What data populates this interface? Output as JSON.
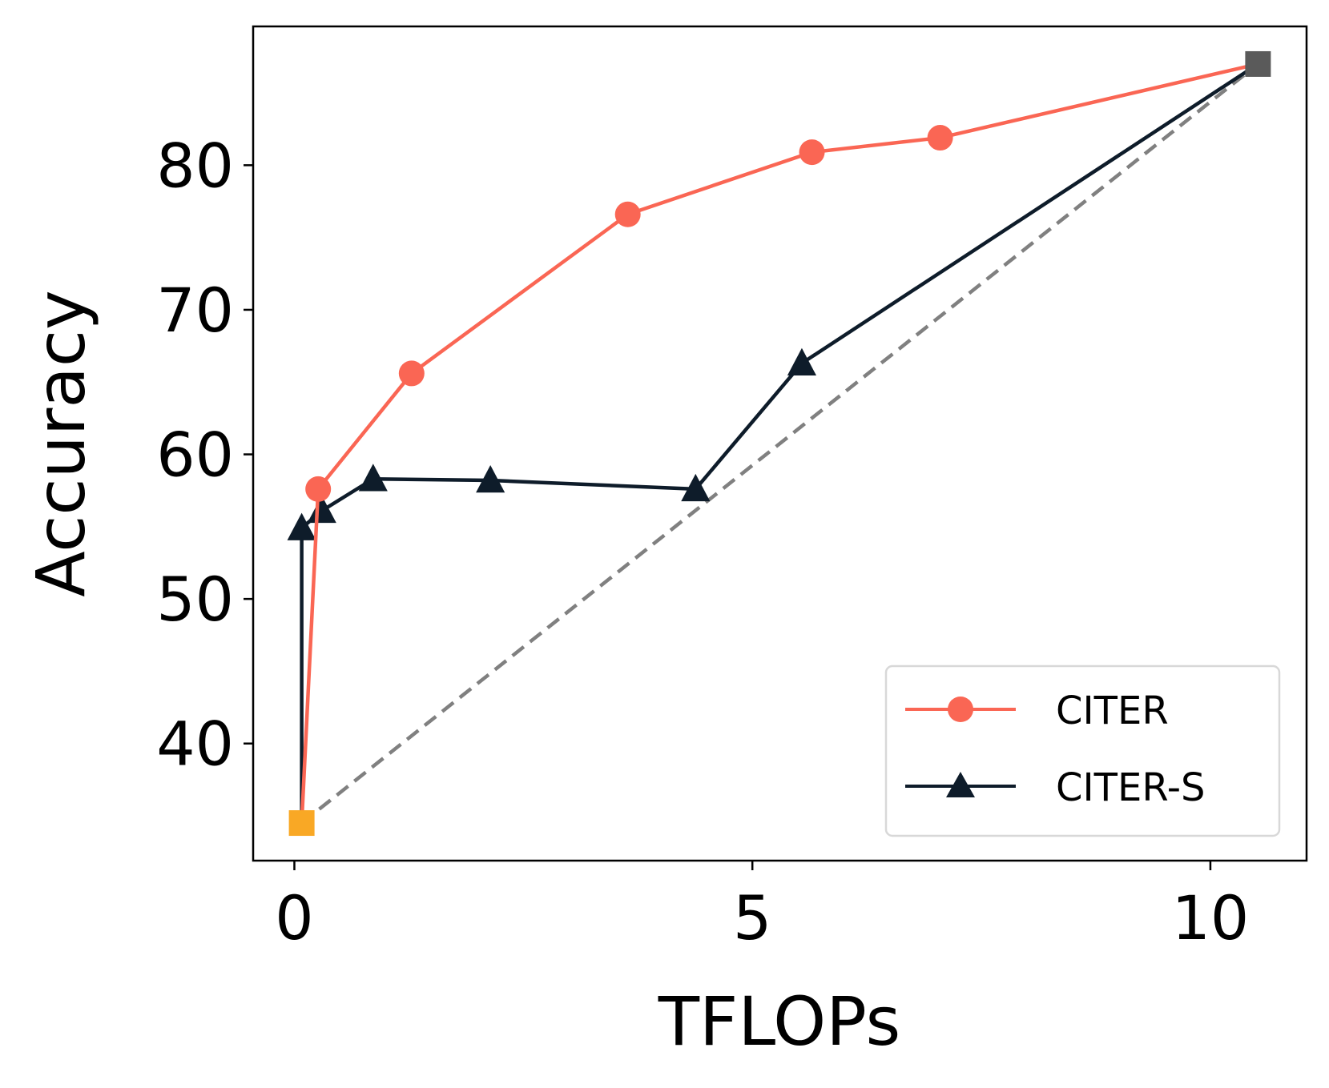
{
  "chart_data": {
    "type": "line",
    "xlabel": "TFLOPs",
    "ylabel": "Accuracy",
    "xlim": [
      -0.45,
      11.05
    ],
    "ylim": [
      31.9,
      89.6
    ],
    "xticks": [
      0,
      5,
      10
    ],
    "yticks": [
      40,
      50,
      60,
      70,
      80
    ],
    "grid": false,
    "legend_position": "bottom-right",
    "series": [
      {
        "name": "CITER",
        "color": "#fa6654",
        "marker": "circle",
        "x": [
          0.08,
          0.26,
          1.28,
          3.64,
          5.65,
          7.05,
          10.52
        ],
        "y": [
          34.5,
          57.6,
          65.6,
          76.6,
          80.9,
          81.9,
          87.0
        ]
      },
      {
        "name": "CITER-S",
        "color": "#0e1c2a",
        "marker": "triangle",
        "x": [
          0.08,
          0.08,
          0.3,
          0.86,
          2.14,
          4.38,
          5.54,
          10.52
        ],
        "y": [
          34.5,
          54.9,
          56.1,
          58.3,
          58.2,
          57.6,
          66.3,
          87.0
        ]
      }
    ],
    "reference_line": {
      "style": "dashed",
      "color": "#808080",
      "x": [
        0.08,
        10.52
      ],
      "y": [
        34.5,
        87.0
      ]
    },
    "endpoint_markers": [
      {
        "x": 0.08,
        "y": 34.5,
        "color": "#f9a825",
        "marker": "square"
      },
      {
        "x": 10.52,
        "y": 87.0,
        "color": "#5a5a5a",
        "marker": "square"
      }
    ]
  }
}
